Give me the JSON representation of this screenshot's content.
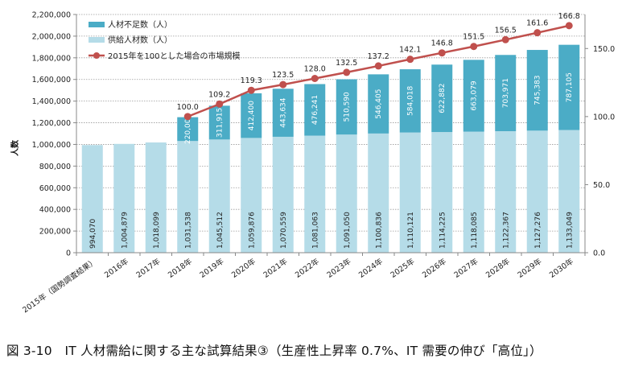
{
  "caption": "図 3-10　IT 人材需給に関する主な試算結果③（生産性上昇率 0.7%、IT 需要の伸び「高位」）",
  "chart_data": {
    "type": "bar",
    "stacked": true,
    "title": "",
    "ylabel": "人数",
    "ylabel_right": "",
    "xlabel": "",
    "ylim": [
      0,
      2200000
    ],
    "ylim_right": [
      0,
      175
    ],
    "yticks": [
      0,
      200000,
      400000,
      600000,
      800000,
      1000000,
      1200000,
      1400000,
      1600000,
      1800000,
      2000000,
      2200000
    ],
    "yticks_right": [
      0,
      50,
      100,
      150
    ],
    "grid": true,
    "legend_position": "top-left",
    "categories": [
      "2015年（国勢調査結果）",
      "2016年",
      "2017年",
      "2018年",
      "2019年",
      "2020年",
      "2021年",
      "2022年",
      "2023年",
      "2024年",
      "2025年",
      "2026年",
      "2027年",
      "2028年",
      "2029年",
      "2030年"
    ],
    "series": [
      {
        "name": "供給人材数（人）",
        "type": "bar",
        "axis": "left",
        "color": "#b5dce8",
        "values": [
          994070,
          1004879,
          1018099,
          1031538,
          1045512,
          1059876,
          1070559,
          1081063,
          1091050,
          1100836,
          1110121,
          1114225,
          1118085,
          1122367,
          1127276,
          1133049
        ],
        "labels": [
          "994,070",
          "1,004,879",
          "1,018,099",
          "1,031,538",
          "1,045,512",
          "1,059,876",
          "1,070,559",
          "1,081,063",
          "1,091,050",
          "1,100,836",
          "1,110,121",
          "1,114,225",
          "1,118,085",
          "1,122,367",
          "1,127,276",
          "1,133,049"
        ]
      },
      {
        "name": "人材不足数（人）",
        "type": "bar",
        "axis": "left",
        "color": "#4bacc6",
        "values": [
          null,
          null,
          null,
          220000,
          311915,
          412400,
          443634,
          476241,
          510590,
          546405,
          584018,
          622882,
          663079,
          703971,
          745383,
          787105
        ],
        "labels": [
          "",
          "",
          "",
          "220,000",
          "311,915",
          "412,400",
          "443,634",
          "476,241",
          "510,590",
          "546,405",
          "584,018",
          "622,882",
          "663,079",
          "703,971",
          "745,383",
          "787,105"
        ]
      },
      {
        "name": "2015年を100とした場合の市場規模",
        "type": "line",
        "axis": "right",
        "color": "#c0504d",
        "values": [
          null,
          null,
          null,
          100.0,
          109.2,
          119.3,
          123.5,
          128.0,
          132.5,
          137.2,
          142.1,
          146.8,
          151.5,
          156.5,
          161.6,
          166.8
        ],
        "labels": [
          "",
          "",
          "",
          "100.0",
          "109.2",
          "119.3",
          "123.5",
          "128.0",
          "132.5",
          "137.2",
          "142.1",
          "146.8",
          "151.5",
          "156.5",
          "161.6",
          "166.8"
        ]
      }
    ],
    "ytick_labels": [
      "0",
      "200,000",
      "400,000",
      "600,000",
      "800,000",
      "1,000,000",
      "1,200,000",
      "1,400,000",
      "1,600,000",
      "1,800,000",
      "2,000,000",
      "2,200,000"
    ],
    "ytick_labels_right": [
      "0.0",
      "50.0",
      "100.0",
      "150.0"
    ]
  }
}
